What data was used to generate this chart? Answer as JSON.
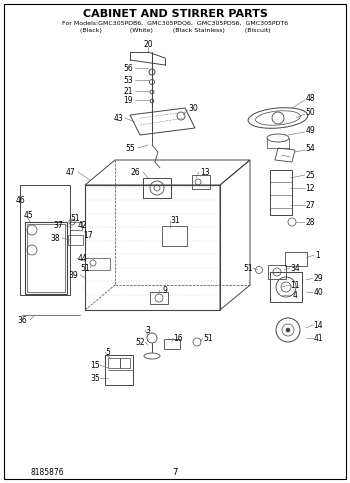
{
  "title": "CABINET AND STIRRER PARTS",
  "subtitle_line1": "For Models:GMC305PDB6,  GMC305PDQ6,  GMC305PDS6,  GMC305PDT6",
  "subtitle_line2": "            (Black)              (White)       (Black Stainless)    (Biscuit)",
  "page_number": "7",
  "part_number": "8185876",
  "bg_color": "#ffffff",
  "text_color": "#000000",
  "line_color": "#444444",
  "fig_w": 3.5,
  "fig_h": 4.83,
  "dpi": 100
}
